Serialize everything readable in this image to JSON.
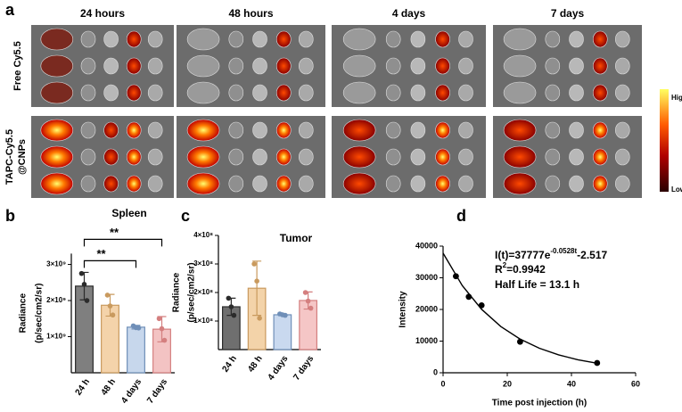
{
  "imaging": {
    "panel_label": "a",
    "columns": [
      "24 hours",
      "48 hours",
      "4 days",
      "7 days"
    ],
    "rows": [
      [
        "Free Cy5.5"
      ],
      [
        "TAPC-Cy5.5",
        "@CNPs"
      ]
    ],
    "colorbar": {
      "high": "High",
      "low": "Low"
    }
  },
  "chart_data": [
    {
      "type": "bar",
      "panel_label": "b",
      "title": "Spleen",
      "categories": [
        "24 h",
        "48 h",
        "4 days",
        "7 days"
      ],
      "values": [
        2400000000,
        1870000000,
        1263000000,
        1207000000
      ],
      "errors": [
        380000000,
        300000000,
        50000000,
        350000000
      ],
      "points": [
        [
          2750000000,
          2450000000,
          2000000000
        ],
        [
          2150000000,
          1850000000,
          1600000000
        ],
        [
          1300000000,
          1250000000,
          1240000000
        ],
        [
          1500000000,
          1220000000,
          900000000
        ]
      ],
      "colors": [
        "#7f7f7f",
        "#f4d3aa",
        "#c7d7ec",
        "#f3c3c3"
      ],
      "edge_colors": [
        "#2b2b2b",
        "#c99a5e",
        "#6f8fb8",
        "#d47f7f"
      ],
      "ylabel": [
        "Radiance",
        "(p/sec/cm2/sr)"
      ],
      "ylim": [
        0,
        3300000000
      ],
      "yticks": [
        {
          "value": 1000000000,
          "label": "1×10⁹"
        },
        {
          "value": 2000000000,
          "label": "2×10⁹"
        },
        {
          "value": 3000000000,
          "label": "3×10⁹"
        }
      ],
      "significance": [
        {
          "text": "**",
          "from": 0,
          "to": 2
        },
        {
          "text": "**",
          "from": 0,
          "to": 3
        }
      ]
    },
    {
      "type": "bar",
      "panel_label": "c",
      "title": "Tumor",
      "categories": [
        "24 h",
        "48 h",
        "4 days",
        "7 days"
      ],
      "values": [
        150000000,
        215000000,
        122000000,
        172000000
      ],
      "errors": [
        30000000,
        95000000,
        3000000,
        30000000
      ],
      "points": [
        [
          180000000,
          150000000,
          120000000
        ],
        [
          300000000,
          240000000,
          110000000
        ],
        [
          125000000,
          122000000,
          120000000
        ],
        [
          200000000,
          170000000,
          145000000
        ]
      ],
      "colors": [
        "#6f6f6f",
        "#f3d3a9",
        "#c9d9ef",
        "#f5c6c6"
      ],
      "edge_colors": [
        "#2b2b2b",
        "#c99a5e",
        "#6f8fb8",
        "#d47f7f"
      ],
      "ylabel": [
        "Radiance",
        "(p/sec/cm2/sr)"
      ],
      "ylim": [
        0,
        400000000
      ],
      "yticks": [
        {
          "value": 100000000,
          "label": "1×10⁸"
        },
        {
          "value": 200000000,
          "label": "2×10⁸"
        },
        {
          "value": 300000000,
          "label": "3×10⁸"
        },
        {
          "value": 400000000,
          "label": "4×10⁸"
        }
      ]
    },
    {
      "type": "scatter",
      "panel_label": "d",
      "xlabel": "Time post injection (h)",
      "ylabel": "Intensity",
      "x": [
        4,
        8,
        12,
        24,
        48
      ],
      "values": [
        30500,
        24000,
        21300,
        9800,
        3100
      ],
      "color": "#000000",
      "fit": {
        "x": [
          0,
          6,
          12,
          18,
          24,
          30,
          36,
          42,
          48
        ],
        "values": [
          37777,
          27520,
          20048,
          14604,
          10639,
          7750,
          5647,
          4114,
          2997
        ]
      },
      "equation": {
        "base": "I(t)=37777e",
        "exponent": "-0.0528t",
        "tail": "-2.517"
      },
      "r_squared": {
        "base": "R",
        "exponent": "2",
        "tail": "=0.9942"
      },
      "half_life": "Half Life = 13.1 h",
      "xlim": [
        0,
        60
      ],
      "xticks": [
        0,
        20,
        40,
        60
      ],
      "ylim": [
        0,
        40000
      ],
      "yticks": [
        0,
        10000,
        20000,
        30000,
        40000
      ]
    }
  ]
}
